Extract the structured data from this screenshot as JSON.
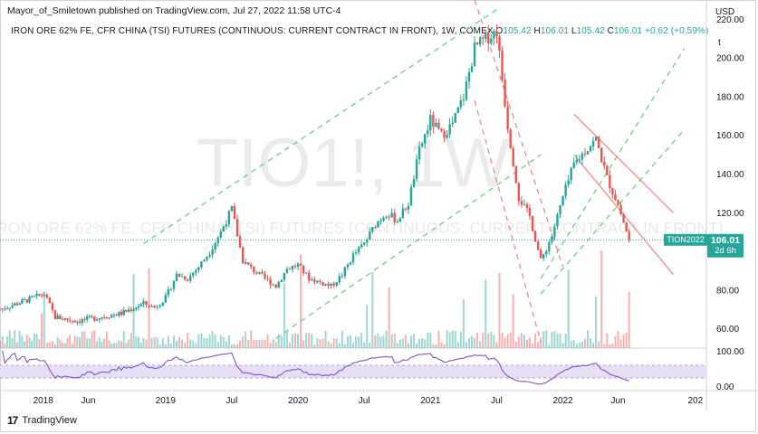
{
  "header": {
    "publish_line": "Mayor_of_Smiletown published on TradingView.com, Jul 27, 2022 11:58 UTC-4"
  },
  "legend": {
    "symbol_title": "IRON ORE 62% FE, CFR CHINA (TSI) FUTURES (CONTINUOUS: CURRENT CONTRACT IN FRONT), 1W, COMEX",
    "o_label": "O",
    "o_value": "105.42",
    "h_label": "H",
    "h_value": "106.01",
    "l_label": "L",
    "l_value": "105.42",
    "c_label": "C",
    "c_value": "106.01",
    "change": "+0.62 (+0.59%)"
  },
  "watermark": {
    "ticker": "TIO1!, 1W",
    "description": "IRON ORE 62% FE, CFR CHINA (TSI) FUTURES (CONTINUOUS: CURRENT CONTRACT IN FRONT)"
  },
  "price_axis": {
    "currency": "USD",
    "unit_marker": "t",
    "ticks": [
      60,
      80,
      100,
      120,
      140,
      160,
      180,
      200,
      220
    ],
    "tick_labels": [
      "60.00",
      "80.00",
      "100.00",
      "120.00",
      "140.00",
      "160.00",
      "180.00",
      "200.00",
      "220.00"
    ]
  },
  "price_tag": {
    "label": "TION2022",
    "value": "106.01",
    "countdown": "2d 6h"
  },
  "rsi_axis": {
    "ticks": [
      0,
      100
    ],
    "tick_labels": [
      "0.00",
      "100.00"
    ]
  },
  "time_axis": {
    "labels": [
      "2018",
      "Jun",
      "2019",
      "Jul",
      "2020",
      "Jul",
      "2021",
      "Jul",
      "2022",
      "Jun",
      "202"
    ]
  },
  "footer": {
    "logo_glyph": "17",
    "brand": "TradingView"
  },
  "colors": {
    "up": "#26a69a",
    "down": "#ef5350",
    "rsi_line": "#7e57c2",
    "rsi_band": "#e8dff5",
    "channel_green": "#6fcf7f",
    "channel_red": "#f28b8b",
    "price_line": "#26a69a"
  },
  "chart_data": {
    "type": "candlestick",
    "timeframe": "1W",
    "x_range": [
      "2017-10",
      "2023-02"
    ],
    "ylim": [
      50,
      230
    ],
    "last_close": 106.01,
    "anchors": [
      {
        "date": "2017-10",
        "close": 70
      },
      {
        "date": "2017-12",
        "close": 74
      },
      {
        "date": "2018-02",
        "close": 78
      },
      {
        "date": "2018-03",
        "close": 66
      },
      {
        "date": "2018-05",
        "close": 64
      },
      {
        "date": "2018-07",
        "close": 66
      },
      {
        "date": "2018-09",
        "close": 68
      },
      {
        "date": "2018-11",
        "close": 73
      },
      {
        "date": "2018-12",
        "close": 71
      },
      {
        "date": "2019-01",
        "close": 76
      },
      {
        "date": "2019-02",
        "close": 88
      },
      {
        "date": "2019-03",
        "close": 86
      },
      {
        "date": "2019-04",
        "close": 92
      },
      {
        "date": "2019-05",
        "close": 100
      },
      {
        "date": "2019-06",
        "close": 110
      },
      {
        "date": "2019-07",
        "close": 122
      },
      {
        "date": "2019-08",
        "close": 95
      },
      {
        "date": "2019-09",
        "close": 90
      },
      {
        "date": "2019-10",
        "close": 86
      },
      {
        "date": "2019-11",
        "close": 82
      },
      {
        "date": "2019-12",
        "close": 91
      },
      {
        "date": "2020-01",
        "close": 93
      },
      {
        "date": "2020-02",
        "close": 86
      },
      {
        "date": "2020-03",
        "close": 84
      },
      {
        "date": "2020-04",
        "close": 82
      },
      {
        "date": "2020-05",
        "close": 88
      },
      {
        "date": "2020-06",
        "close": 98
      },
      {
        "date": "2020-07",
        "close": 104
      },
      {
        "date": "2020-08",
        "close": 114
      },
      {
        "date": "2020-09",
        "close": 120
      },
      {
        "date": "2020-10",
        "close": 116
      },
      {
        "date": "2020-11",
        "close": 125
      },
      {
        "date": "2020-12",
        "close": 152
      },
      {
        "date": "2021-01",
        "close": 168
      },
      {
        "date": "2021-02",
        "close": 160
      },
      {
        "date": "2021-03",
        "close": 166
      },
      {
        "date": "2021-04",
        "close": 180
      },
      {
        "date": "2021-05",
        "close": 205
      },
      {
        "date": "2021-06",
        "close": 210
      },
      {
        "date": "2021-07",
        "close": 214
      },
      {
        "date": "2021-08",
        "close": 165
      },
      {
        "date": "2021-09",
        "close": 128
      },
      {
        "date": "2021-10",
        "close": 118
      },
      {
        "date": "2021-11",
        "close": 95
      },
      {
        "date": "2021-12",
        "close": 108
      },
      {
        "date": "2022-01",
        "close": 128
      },
      {
        "date": "2022-02",
        "close": 145
      },
      {
        "date": "2022-03",
        "close": 152
      },
      {
        "date": "2022-04",
        "close": 158
      },
      {
        "date": "2022-05",
        "close": 138
      },
      {
        "date": "2022-06",
        "close": 124
      },
      {
        "date": "2022-07",
        "close": 106.01
      }
    ],
    "indicator": {
      "name": "RSI",
      "ylim": [
        0,
        100
      ]
    }
  }
}
